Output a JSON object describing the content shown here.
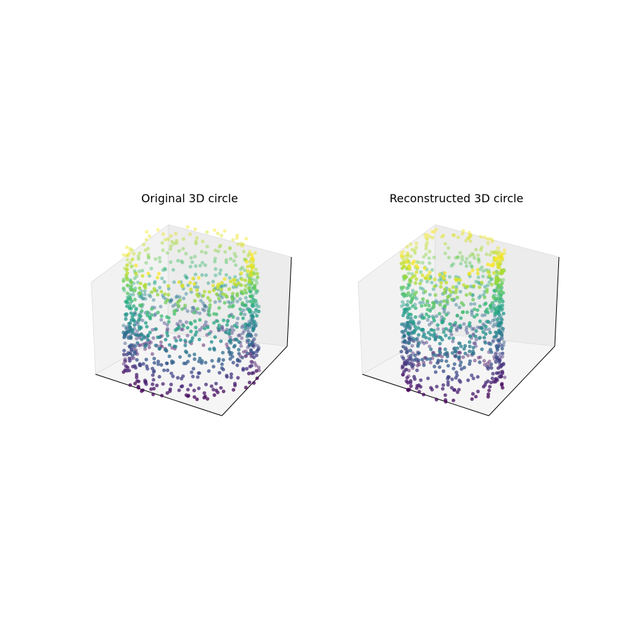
{
  "chart_data": [
    {
      "type": "scatter",
      "subtype": "3d",
      "title": "Original 3D circle",
      "xlabel": "",
      "ylabel": "",
      "zlabel": "",
      "ticks": "hidden",
      "grid": false,
      "colormap": "viridis",
      "color_by": "z",
      "alpha": 0.75,
      "point_count": 1000,
      "shape": "hollow cylinder (points on a ring of radius 1 spread over height)",
      "radius": 1.0,
      "zlim": [
        -1,
        1
      ],
      "seed": 7
    },
    {
      "type": "scatter",
      "subtype": "3d",
      "title": "Reconstructed 3D circle",
      "xlabel": "",
      "ylabel": "",
      "zlabel": "",
      "ticks": "hidden",
      "grid": false,
      "colormap": "viridis",
      "color_by": "z",
      "alpha": 0.75,
      "point_count": 1000,
      "shape": "hollow cylinder (reconstruction, slightly narrower and taller)",
      "radius": 0.85,
      "zlim": [
        -1,
        1
      ],
      "seed": 11
    }
  ]
}
